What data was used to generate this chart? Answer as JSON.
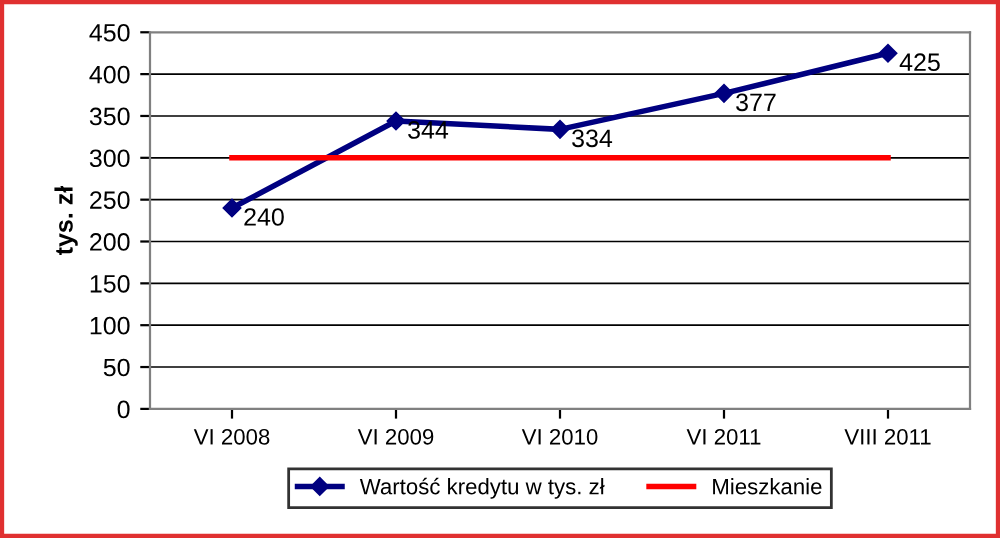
{
  "chart_data": {
    "type": "line",
    "ylabel": "tys. zł",
    "categories": [
      "VI 2008",
      "VI 2009",
      "VI 2010",
      "VI 2011",
      "VIII 2011"
    ],
    "series": [
      {
        "name": "Wartość kredytu w tys. zł",
        "color": "#000080",
        "values": [
          240,
          344,
          334,
          377,
          425
        ],
        "value_labels": [
          "240",
          "344",
          "334",
          "377",
          "425"
        ],
        "marker": "diamond"
      },
      {
        "name": "Mieszkanie",
        "color": "#ff0000",
        "values": [
          300,
          300,
          300,
          300,
          300
        ],
        "marker": "none"
      }
    ],
    "ylim": [
      0,
      450
    ],
    "yticks": [
      0,
      50,
      100,
      150,
      200,
      250,
      300,
      350,
      400,
      450
    ],
    "grid": "y",
    "legend": "bottom"
  }
}
